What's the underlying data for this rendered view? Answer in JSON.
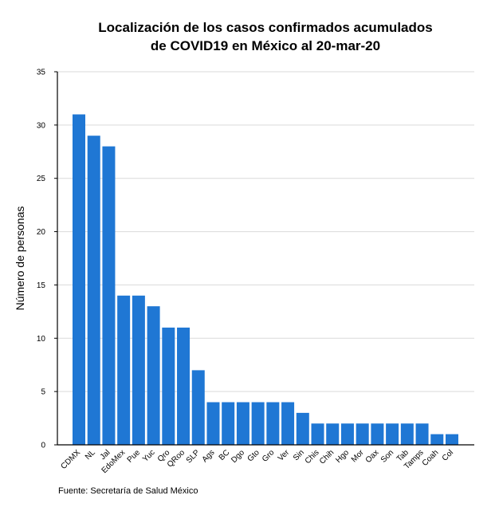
{
  "chart_data": {
    "type": "bar",
    "title_lines": [
      "Localización de los casos confirmados acumulados",
      "de COVID19 en México al 20-mar-20"
    ],
    "xlabel": "",
    "ylabel": "Número de personas",
    "caption": "Fuente: Secretaría de Salud México",
    "categories": [
      "CDMX",
      "NL",
      "Jal",
      "EdoMex",
      "Pue",
      "Yuc",
      "Qro",
      "QRoo",
      "SLP",
      "Ags",
      "BC",
      "Dgo",
      "Gto",
      "Gro",
      "Ver",
      "Sin",
      "Chis",
      "Chih",
      "Hgo",
      "Mor",
      "Oax",
      "Son",
      "Tab",
      "Tamps",
      "Coah",
      "Col"
    ],
    "values": [
      31,
      29,
      28,
      14,
      14,
      13,
      11,
      11,
      7,
      4,
      4,
      4,
      4,
      4,
      4,
      3,
      2,
      2,
      2,
      2,
      2,
      2,
      2,
      2,
      1,
      1
    ],
    "ylim": [
      0,
      35
    ],
    "yticks": [
      0,
      5,
      10,
      15,
      20,
      25,
      30,
      35
    ],
    "grid": true,
    "legend": "none",
    "bar_color": "#1f77d4",
    "grid_color": "#d9d9d9",
    "axis_color": "#000000"
  }
}
